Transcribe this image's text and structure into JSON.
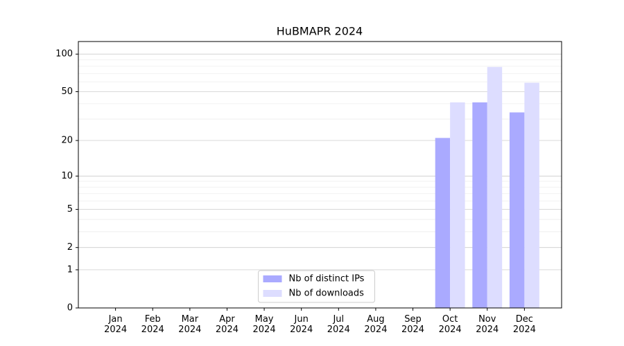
{
  "chart_data": {
    "type": "bar",
    "title": "HuBMAPR 2024",
    "categories": [
      "Jan\n2024",
      "Feb\n2024",
      "Mar\n2024",
      "Apr\n2024",
      "May\n2024",
      "Jun\n2024",
      "Jul\n2024",
      "Aug\n2024",
      "Sep\n2024",
      "Oct\n2024",
      "Nov\n2024",
      "Dec\n2024"
    ],
    "series": [
      {
        "name": "Nb of distinct IPs",
        "color": "#aaaaff",
        "values": [
          0,
          0,
          0,
          0,
          0,
          0,
          0,
          0,
          0,
          21,
          41,
          34
        ]
      },
      {
        "name": "Nb of downloads",
        "color": "#ddddff",
        "values": [
          0,
          0,
          0,
          0,
          0,
          0,
          0,
          0,
          0,
          41,
          79,
          59
        ]
      }
    ],
    "yscale": "log1p",
    "ylim": [
      0,
      126
    ],
    "yticks": [
      0,
      1,
      2,
      5,
      10,
      20,
      50,
      100
    ],
    "yminorticks": [
      3,
      4,
      6,
      7,
      8,
      9,
      30,
      40,
      60,
      70,
      80,
      90
    ],
    "grid": true,
    "legend": "lower center"
  }
}
